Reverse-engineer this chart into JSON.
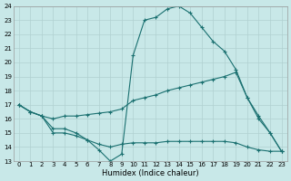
{
  "xlabel": "Humidex (Indice chaleur)",
  "xlim": [
    -0.5,
    23.5
  ],
  "ylim": [
    13,
    24
  ],
  "yticks": [
    13,
    14,
    15,
    16,
    17,
    18,
    19,
    20,
    21,
    22,
    23,
    24
  ],
  "xticks": [
    0,
    1,
    2,
    3,
    4,
    5,
    6,
    7,
    8,
    9,
    10,
    11,
    12,
    13,
    14,
    15,
    16,
    17,
    18,
    19,
    20,
    21,
    22,
    23
  ],
  "bg_color": "#c8e8e8",
  "grid_color": "#b0d0d0",
  "line_color": "#1a7070",
  "line1_y": [
    17.0,
    16.5,
    16.2,
    15.0,
    15.0,
    14.8,
    14.5,
    13.8,
    13.0,
    13.5,
    20.5,
    23.0,
    23.2,
    23.8,
    24.0,
    23.5,
    22.5,
    21.5,
    20.8,
    19.5,
    17.5,
    16.2,
    15.0,
    13.7
  ],
  "line2_y": [
    17.0,
    16.5,
    16.2,
    16.0,
    16.2,
    16.2,
    16.3,
    16.4,
    16.5,
    16.7,
    17.3,
    17.5,
    17.7,
    18.0,
    18.2,
    18.4,
    18.6,
    18.8,
    19.0,
    19.3,
    17.5,
    16.0,
    15.0,
    13.7
  ],
  "line3_y": [
    17.0,
    16.5,
    16.2,
    15.3,
    15.3,
    15.0,
    14.5,
    14.2,
    14.0,
    14.2,
    14.3,
    14.3,
    14.3,
    14.4,
    14.4,
    14.4,
    14.4,
    14.4,
    14.4,
    14.3,
    14.0,
    13.8,
    13.7,
    13.7
  ]
}
